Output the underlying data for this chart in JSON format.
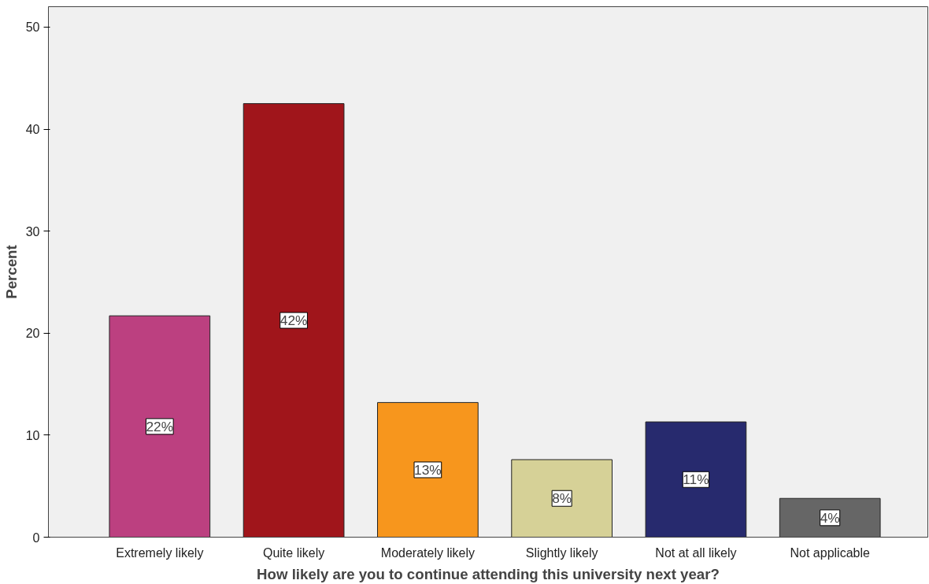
{
  "chart_data": {
    "type": "bar",
    "xlabel": "How likely are you to continue attending this university next year?",
    "ylabel": "Percent",
    "categories": [
      "Extremely likely",
      "Quite likely",
      "Moderately likely",
      "Slightly likely",
      "Not at all likely",
      "Not applicable"
    ],
    "values": [
      21.7,
      42.5,
      13.2,
      7.6,
      11.3,
      3.8
    ],
    "colors": [
      "#bc4080",
      "#a0151b",
      "#f7961d",
      "#d6d197",
      "#272a6e",
      "#666666"
    ],
    "value_labels": [
      "22%",
      "42%",
      "13%",
      "8%",
      "11%",
      "4%"
    ],
    "ylim": [
      0,
      52
    ],
    "yticks": [
      0,
      10,
      20,
      30,
      40,
      50
    ]
  }
}
